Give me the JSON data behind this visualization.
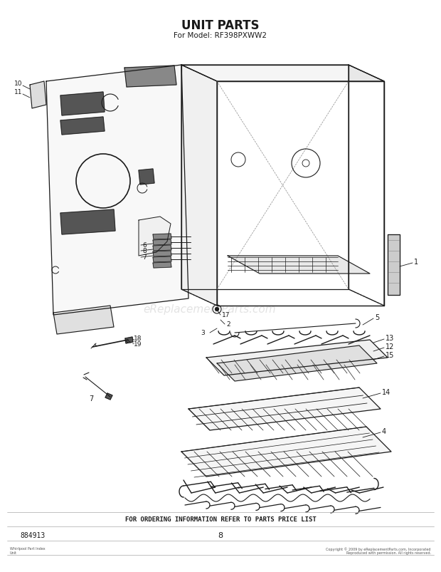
{
  "title_line1": "UNIT PARTS",
  "title_line2": "For Model: RF398PXWW2",
  "footer_text": "FOR ORDERING INFORMATION REFER TO PARTS PRICE LIST",
  "part_number": "884913",
  "page_number": "8",
  "bg_color": "#ffffff",
  "line_color": "#1a1a1a",
  "watermark_text": "eReplacementParts.com",
  "watermark_color": "#c8c8c8",
  "fig_width": 6.2,
  "fig_height": 8.04,
  "dpi": 100
}
